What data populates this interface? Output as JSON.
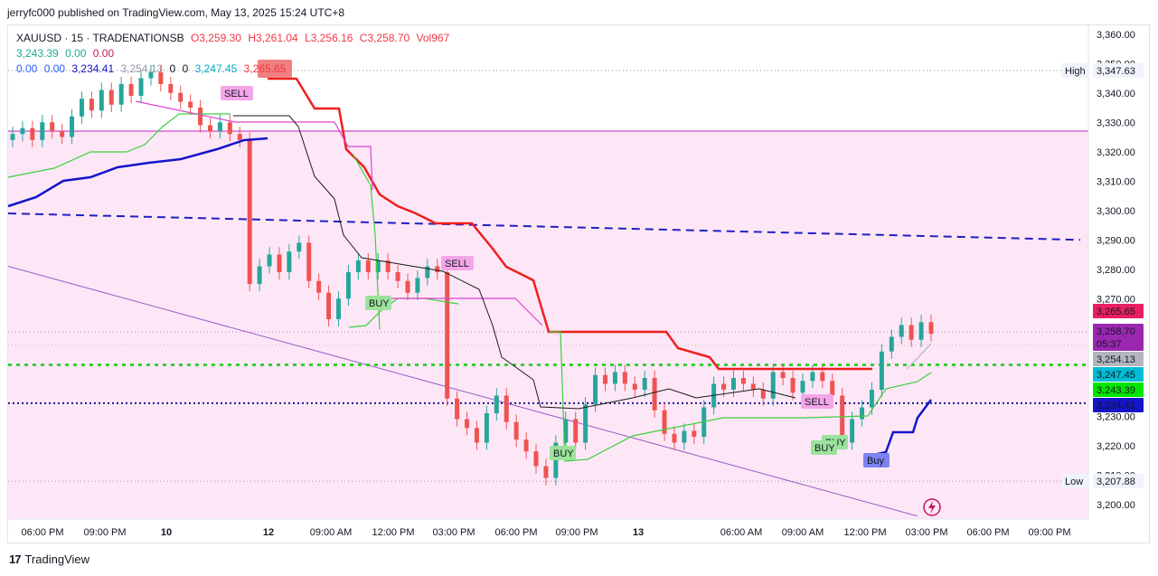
{
  "header": {
    "caption": "jerryfc000 published on TradingView.com, May 13, 2025 15:24 UTC+8"
  },
  "legend": {
    "symbol": "XAUUSD · 15 · TRADENATIONSB",
    "open": "O3,259.30",
    "high": "H3,261.04",
    "low": "L3,256.16",
    "close": "C3,258.70",
    "vol": "Vol967",
    "row2": [
      "3,243.39",
      "0.00",
      "0.00"
    ],
    "row3": [
      "0.00",
      "0.00",
      "3,234.41",
      "3,254.13",
      "0",
      "0",
      "3,247.45",
      "3,265.65"
    ]
  },
  "footer": {
    "brand": "TradingView"
  },
  "colors": {
    "bg_zone": "#fde7f7",
    "up": "#26a69a",
    "down": "#ef5350",
    "red_line": "#f01e1e",
    "blue_line": "#1515c8",
    "green_line": "#3bd13b",
    "magenta_line": "#e040d0",
    "dashed_blue": "#2020c0",
    "purple_diag": "#9c5cc8",
    "dotted_green": "#11cc11"
  },
  "chart_data": {
    "type": "candlestick",
    "symbol": "XAUUSD",
    "timeframe": "15",
    "ylim": [
      3195,
      3363
    ],
    "y_ticks": [
      3200,
      3210,
      3220,
      3230,
      3240,
      3250,
      3260,
      3270,
      3280,
      3290,
      3300,
      3310,
      3320,
      3330,
      3340,
      3350,
      3360
    ],
    "x_tick_labels": [
      "06:00 PM",
      "09:00 PM",
      "10",
      "12",
      "09:00 AM",
      "12:00 PM",
      "03:00 PM",
      "06:00 PM",
      "09:00 PM",
      "13",
      "06:00 AM",
      "09:00 AM",
      "12:00 PM",
      "03:00 PM",
      "06:00 PM",
      "09:00 PM"
    ],
    "price_labels": [
      {
        "text": "High",
        "value": "3,347.63"
      },
      {
        "text": "Low",
        "value": "3,207.88"
      }
    ],
    "price_boxes": [
      {
        "value": "3,265.65",
        "color": "#e91e63"
      },
      {
        "value": "3,258.70",
        "sub": "05:37",
        "color": "#9c27b0"
      },
      {
        "value": "3,254.13",
        "color": "#b2b5be"
      },
      {
        "value": "3,247.45",
        "color": "#00bcd4"
      },
      {
        "value": "3,243.39",
        "color": "#00e600"
      },
      {
        "value": "3,234.41",
        "color": "#1414c8"
      }
    ],
    "close_series": [
      3326,
      3328,
      3324,
      3330,
      3327,
      3325,
      3332,
      3338,
      3334,
      3341,
      3336,
      3343,
      3339,
      3345,
      3347,
      3343,
      3340,
      3337,
      3335,
      3329,
      3327,
      3330,
      3326,
      3324,
      3275,
      3281,
      3285,
      3279,
      3286,
      3289,
      3276,
      3272,
      3263,
      3270,
      3279,
      3283,
      3279,
      3283,
      3279,
      3276,
      3272,
      3277,
      3281,
      3279,
      3236,
      3229,
      3226,
      3221,
      3231,
      3237,
      3228,
      3222,
      3218,
      3213,
      3209,
      3221,
      3229,
      3221,
      3234,
      3244,
      3241,
      3245,
      3241,
      3239,
      3243,
      3232,
      3224,
      3221,
      3225,
      3223,
      3233,
      3241,
      3239,
      3243,
      3241,
      3239,
      3236,
      3245,
      3243,
      3238,
      3242,
      3245,
      3242,
      3237,
      3221,
      3229,
      3233,
      3239,
      3252,
      3257,
      3261,
      3256,
      3262,
      3258
    ],
    "signals": [
      {
        "label": "SELL",
        "type": "sell"
      },
      {
        "label": "BUY",
        "type": "buy"
      },
      {
        "label": "SELL",
        "type": "sell"
      },
      {
        "label": "BUY",
        "type": "buy"
      },
      {
        "label": "SELL",
        "type": "sell"
      },
      {
        "label": "BUY",
        "type": "buy"
      },
      {
        "label": "BUY",
        "type": "buy"
      },
      {
        "label": "Buy",
        "type": "buy-blue"
      }
    ]
  }
}
